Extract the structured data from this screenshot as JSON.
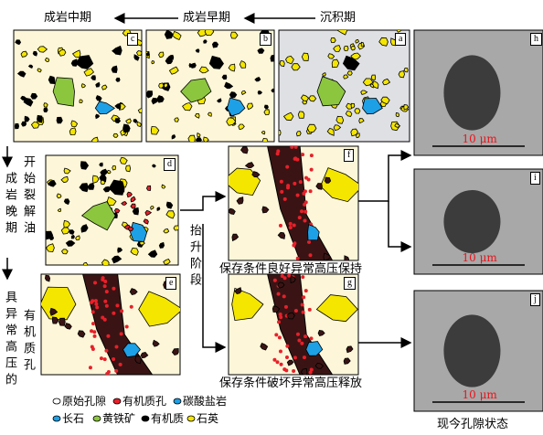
{
  "header": {
    "stages": [
      "成岩中期",
      "成岩早期",
      "沉积期"
    ]
  },
  "panels": [
    {
      "label": "a"
    },
    {
      "label": "b"
    },
    {
      "label": "c"
    },
    {
      "label": "d"
    },
    {
      "label": "e"
    },
    {
      "label": "f"
    },
    {
      "label": "g"
    },
    {
      "label": "h"
    },
    {
      "label": "i"
    },
    {
      "label": "j"
    }
  ],
  "side": {
    "late_stage": "成岩晚期",
    "oil": "开始裂解油",
    "uplift": "抬升阶段",
    "pressure_a": "具异常高压的",
    "pressure_b": "有机质孔"
  },
  "captions": {
    "f": "保存条件良好异常高压保持",
    "g": "保存条件破坏异常高压释放",
    "present": "现今孔隙状态"
  },
  "scale_labels": [
    "10 μm",
    "10 μm",
    "10 μm"
  ],
  "legend": [
    "原始孔隙",
    "有机质孔",
    "碳酸盐岩",
    "长石",
    "黄铁矿",
    "有机质",
    "石英"
  ]
}
